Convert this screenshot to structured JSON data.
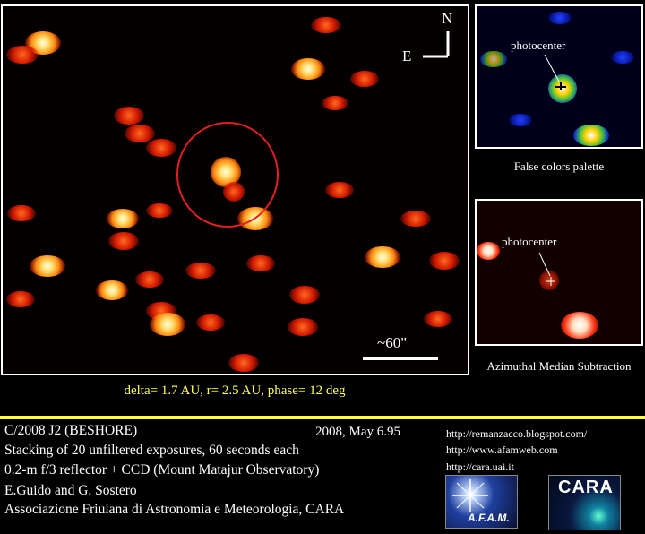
{
  "compass": {
    "north": "N",
    "east": "E"
  },
  "scale_label": "~60\"",
  "false_colors": {
    "annotation": "photocenter",
    "caption": "False colors palette"
  },
  "azimuthal": {
    "annotation": "photocenter",
    "caption": "Azimuthal Median Subtraction"
  },
  "geometry_line": "delta= 1.7 AU, r= 2.5 AU, phase= 12 deg",
  "info": {
    "object": "C/2008 J2 (BESHORE)",
    "date": "2008, May 6.95",
    "stacking": "Stacking of 20 unfiltered exposures, 60 seconds each",
    "instrument": "0.2-m f/3 reflector + CCD (Mount Matajur Observatory)",
    "authors": "E.Guido and G. Sostero",
    "association": "Associazione Friulana di Astronomia e Meteorologia, CARA"
  },
  "links": [
    "http://remanzacco.blogspot.com/",
    "http://www.afamweb.com",
    "http://cara.uai.it"
  ],
  "logos": {
    "afam": "A.F.A.M.",
    "cara": "CARA"
  }
}
